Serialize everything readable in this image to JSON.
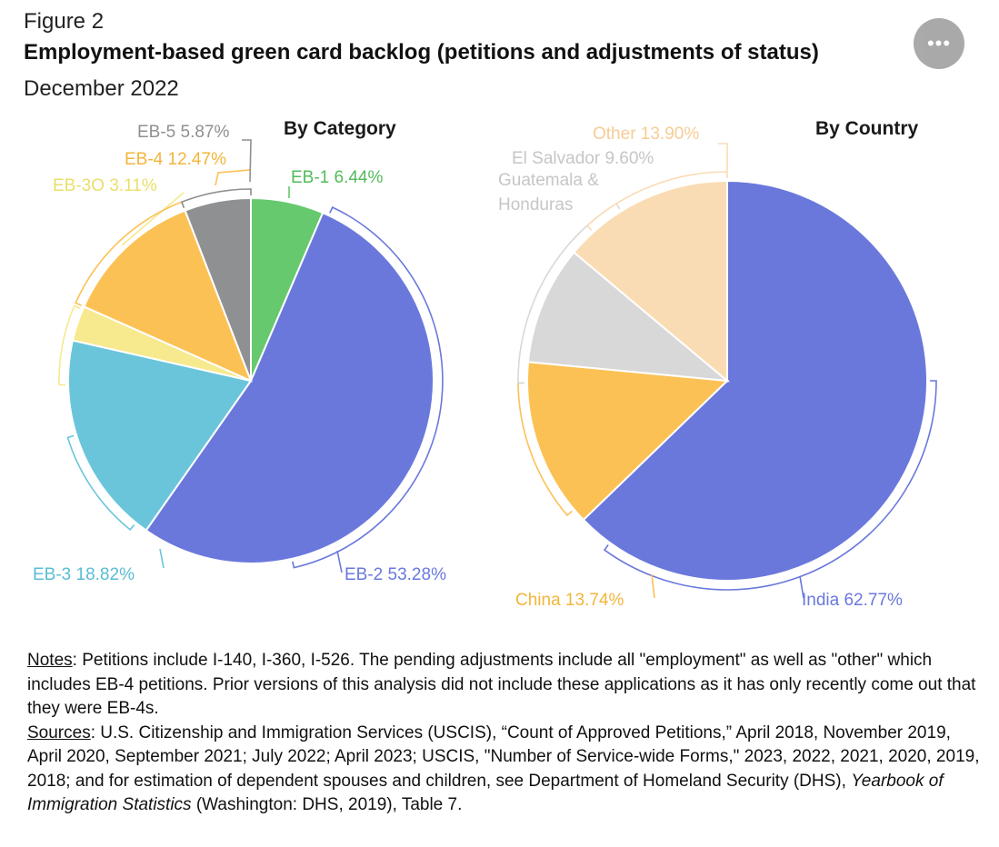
{
  "header": {
    "figure_label": "Figure 2",
    "title": "Employment-based green card backlog (petitions and adjustments of status)",
    "subtitle": "December 2022",
    "more_label": "•••"
  },
  "chart_data": [
    {
      "type": "pie",
      "title": "By Category",
      "start_angle_deg": 0,
      "direction": "clockwise",
      "slices": [
        {
          "label": "EB-1",
          "value": 6.44,
          "display": "EB-1 6.44%",
          "color": "#66c96e"
        },
        {
          "label": "EB-2",
          "value": 53.28,
          "display": "EB-2 53.28%",
          "color": "#6a78dc"
        },
        {
          "label": "EB-3",
          "value": 18.82,
          "display": "EB-3 18.82%",
          "color": "#6ac5db"
        },
        {
          "label": "EB-3O",
          "value": 3.11,
          "display": "EB-3O 3.11%",
          "color": "#f7e98e"
        },
        {
          "label": "EB-4",
          "value": 12.47,
          "display": "EB-4 12.47%",
          "color": "#fcc155"
        },
        {
          "label": "EB-5",
          "value": 5.87,
          "display": "EB-5 5.87%",
          "color": "#8f9092"
        }
      ]
    },
    {
      "type": "pie",
      "title": "By Country",
      "start_angle_deg": 0,
      "direction": "clockwise",
      "slices": [
        {
          "label": "India",
          "value": 62.77,
          "display": "India 62.77%",
          "color": "#6a78dc"
        },
        {
          "label": "China",
          "value": 13.74,
          "display": "China 13.74%",
          "color": "#fcc155"
        },
        {
          "label": "El Salvador, Guatemala & Honduras",
          "value": 9.6,
          "display_lines": [
            "El Salvador 9.60%",
            "Guatemala &",
            "Honduras"
          ],
          "color": "#d8d8d8"
        },
        {
          "label": "Other",
          "value": 13.9,
          "display": "Other 13.90%",
          "color": "#fadcb4"
        }
      ]
    }
  ],
  "notes": {
    "notes_label": "Notes",
    "notes_text": ": Petitions include I-140, I-360, I-526. The pending adjustments include all \"employment\" as well as \"other\" which includes EB-4 petitions. Prior versions of this analysis did not include these applications as it has only recently come out that they were EB-4s.",
    "sources_label": "Sources",
    "sources_text": ": U.S. Citizenship and Immigration Services (USCIS), “Count of Approved Petitions,” April 2018, November 2019, April 2020, September 2021; July 2022; April 2023; USCIS, \"Number of Service-wide Forms,\" 2023, 2022, 2021, 2020, 2019, 2018; and for estimation of dependent spouses and children, see Department of Homeland Security (DHS), ",
    "sources_italic": "Yearbook of Immigration Statistics",
    "sources_end": " (Washington: DHS, 2019), Table 7."
  }
}
